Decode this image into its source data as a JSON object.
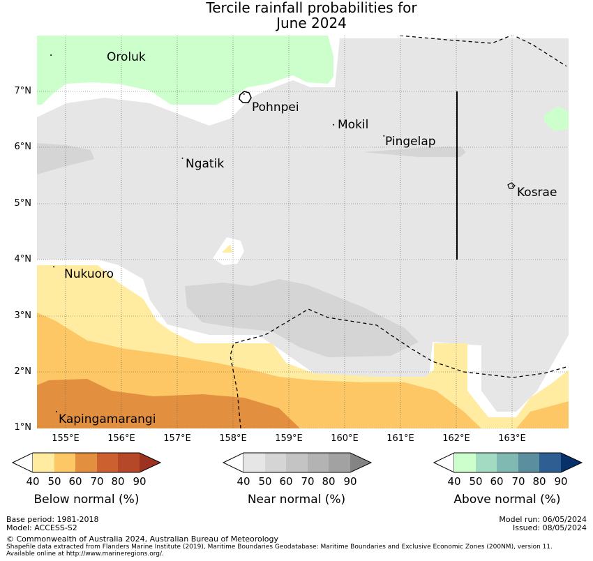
{
  "title": {
    "line1": "Tercile rainfall probabilities for",
    "line2": "June 2024"
  },
  "axes": {
    "lat_labels": [
      "7°N",
      "6°N",
      "5°N",
      "4°N",
      "3°N",
      "2°N",
      "1°N"
    ],
    "lon_labels": [
      "155°E",
      "156°E",
      "157°E",
      "158°E",
      "159°E",
      "160°E",
      "161°E",
      "162°E",
      "163°E"
    ],
    "lat_range": [
      0.95,
      8.0
    ],
    "lon_range": [
      154.5,
      164.0
    ]
  },
  "places": [
    {
      "name": "Oroluk",
      "lon": 154.75,
      "lat": 7.65
    },
    {
      "name": "Pohnpei",
      "lon": 158.2,
      "lat": 6.95
    },
    {
      "name": "Mokil",
      "lon": 159.8,
      "lat": 6.4
    },
    {
      "name": "Pingelap",
      "lon": 160.7,
      "lat": 6.2
    },
    {
      "name": "Ngatik",
      "lon": 157.1,
      "lat": 5.8
    },
    {
      "name": "Kosrae",
      "lon": 163.0,
      "lat": 5.3
    },
    {
      "name": "Nukuoro",
      "lon": 154.8,
      "lat": 3.85
    },
    {
      "name": "Kapingamarangi",
      "lon": 154.85,
      "lat": 1.25
    }
  ],
  "colorbars": [
    {
      "name": "below-normal",
      "label": "Below normal (%)",
      "ticks": [
        "40",
        "50",
        "60",
        "70",
        "80",
        "90"
      ],
      "colors": [
        "#ffffff",
        "#ffeca0",
        "#fdc765",
        "#e2903f",
        "#cc602f",
        "#b6482a",
        "#9e3220"
      ]
    },
    {
      "name": "near-normal",
      "label": "Near normal (%)",
      "ticks": [
        "40",
        "50",
        "60",
        "70",
        "80",
        "90"
      ],
      "colors": [
        "#ffffff",
        "#e6e6e6",
        "#d5d5d5",
        "#c4c4c4",
        "#b3b3b3",
        "#a2a2a2",
        "#848484"
      ]
    },
    {
      "name": "above-normal",
      "label": "Above normal (%)",
      "ticks": [
        "40",
        "50",
        "60",
        "70",
        "80",
        "90"
      ],
      "colors": [
        "#ffffff",
        "#ccffcc",
        "#a2dbc1",
        "#80b9b2",
        "#5b8fa0",
        "#2f5e92",
        "#08306b"
      ]
    }
  ],
  "footer": {
    "base_period": "Base period: 1981-2018",
    "model": "Model: ACCESS-S2",
    "model_run": "Model run: 06/05/2024",
    "issued": "Issued: 08/05/2024",
    "copyright": "© Commonwealth of Australia 2024, Australian Bureau of Meteorology",
    "shapefile": "Shapefile data extracted from Flanders Marine Institute (2019), Maritime Boundaries Geodatabase: Maritime Boundaries and Exclusive Economic Zones (200NM), version 11.",
    "available": "Available online at http://www.marineregions.org/."
  }
}
